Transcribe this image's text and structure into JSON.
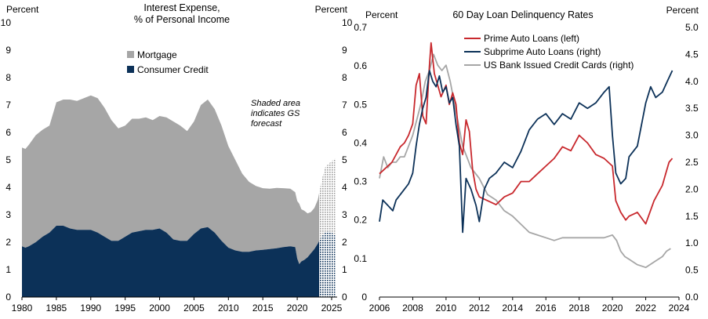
{
  "charts": [
    {
      "title_lines": [
        "Interest Expense,",
        "% of Personal Income"
      ],
      "ylabel_left": "Percent",
      "ylabel_right": "Percent",
      "x_ticks": [
        "1980",
        "1985",
        "1990",
        "1995",
        "2000",
        "2005",
        "2010",
        "2015",
        "2020",
        "2025"
      ],
      "y_ticks": [
        "0",
        "1",
        "2",
        "3",
        "4",
        "5",
        "6",
        "7",
        "8",
        "9",
        "10"
      ],
      "annotation_lines": [
        "Shaded area",
        "indicates GS",
        "forecast"
      ],
      "legend": [
        "Mortgage",
        "Consumer Credit"
      ]
    },
    {
      "title": "60 Day Loan Delinquency Rates",
      "ylabel_left": "Percent",
      "ylabel_right": "Percent",
      "x_ticks": [
        "2006",
        "2008",
        "2010",
        "2012",
        "2014",
        "2016",
        "2018",
        "2020",
        "2022",
        "2024"
      ],
      "y_ticks_left": [
        "0",
        "0.1",
        "0.2",
        "0.3",
        "0.4",
        "0.5",
        "0.6",
        "0.7"
      ],
      "y_ticks_right": [
        "0.0",
        "0.5",
        "1.0",
        "1.5",
        "2.0",
        "2.5",
        "3.0",
        "3.5",
        "4.0",
        "4.5",
        "5.0"
      ],
      "legend": [
        "Prime Auto Loans (left)",
        "Subprime Auto Loans (right)",
        "US Bank Issued Credit Cards (right)"
      ]
    }
  ],
  "colors": {
    "mortgage": "#a6a6a6",
    "consumer_credit": "#0c3158",
    "prime": "#c8282d",
    "subprime": "#0c3158",
    "cards": "#a6a6a6"
  },
  "chart_data": [
    {
      "type": "area",
      "stacked": true,
      "xlim": [
        1980,
        2025.8
      ],
      "ylim": [
        0,
        10
      ],
      "forecast_start": 2023.2,
      "series": [
        {
          "name": "Consumer Credit",
          "x": [
            1980,
            1980.5,
            1981,
            1982,
            1983,
            1984,
            1985,
            1986,
            1987,
            1988,
            1989,
            1990,
            1991,
            1992,
            1993,
            1994,
            1995,
            1996,
            1997,
            1998,
            1999,
            2000,
            2001,
            2002,
            2003,
            2004,
            2005,
            2006,
            2007,
            2008,
            2009,
            2010,
            2011,
            2012,
            2013,
            2014,
            2015,
            2016,
            2017,
            2018,
            2019,
            2019.7,
            2020,
            2020.3,
            2020.6,
            2021,
            2021.5,
            2022,
            2022.5,
            2023,
            2023.5,
            2024,
            2024.5,
            2025,
            2025.5
          ],
          "values": [
            1.85,
            1.8,
            1.85,
            2.0,
            2.2,
            2.35,
            2.6,
            2.6,
            2.5,
            2.45,
            2.45,
            2.45,
            2.35,
            2.2,
            2.05,
            2.05,
            2.2,
            2.35,
            2.4,
            2.45,
            2.45,
            2.5,
            2.35,
            2.1,
            2.05,
            2.05,
            2.3,
            2.5,
            2.55,
            2.35,
            2.05,
            1.8,
            1.7,
            1.65,
            1.65,
            1.7,
            1.72,
            1.75,
            1.78,
            1.82,
            1.85,
            1.82,
            1.4,
            1.2,
            1.3,
            1.35,
            1.45,
            1.6,
            1.75,
            1.95,
            2.2,
            2.35,
            2.4,
            2.35,
            2.25
          ]
        },
        {
          "name": "Mortgage",
          "x": [
            1980,
            1980.5,
            1981,
            1982,
            1983,
            1984,
            1985,
            1986,
            1987,
            1988,
            1989,
            1990,
            1991,
            1992,
            1993,
            1994,
            1995,
            1996,
            1997,
            1998,
            1999,
            2000,
            2001,
            2002,
            2003,
            2004,
            2005,
            2006,
            2007,
            2008,
            2009,
            2010,
            2011,
            2012,
            2013,
            2014,
            2015,
            2016,
            2017,
            2018,
            2019,
            2019.7,
            2020,
            2020.3,
            2020.6,
            2021,
            2021.5,
            2022,
            2022.5,
            2023,
            2023.5,
            2024,
            2024.5,
            2025,
            2025.5
          ],
          "values": [
            3.6,
            3.6,
            3.7,
            3.9,
            3.9,
            3.9,
            4.5,
            4.6,
            4.7,
            4.7,
            4.8,
            4.9,
            4.9,
            4.7,
            4.4,
            4.1,
            4.05,
            4.15,
            4.1,
            4.1,
            4.0,
            4.1,
            4.2,
            4.3,
            4.2,
            4.0,
            4.1,
            4.5,
            4.65,
            4.5,
            4.2,
            3.7,
            3.3,
            2.85,
            2.55,
            2.35,
            2.25,
            2.2,
            2.2,
            2.15,
            2.1,
            2.0,
            2.1,
            2.2,
            1.9,
            1.8,
            1.6,
            1.5,
            1.5,
            1.6,
            2.0,
            2.35,
            2.45,
            2.6,
            2.8
          ]
        }
      ]
    },
    {
      "type": "line",
      "xlim": [
        2006,
        2024
      ],
      "ylim_left": [
        0,
        0.7
      ],
      "ylim_right": [
        0,
        5
      ],
      "series": [
        {
          "name": "Prime Auto Loans (left)",
          "axis": "left",
          "x": [
            2006,
            2006.25,
            2006.5,
            2006.75,
            2007,
            2007.25,
            2007.5,
            2007.75,
            2008,
            2008.2,
            2008.4,
            2008.6,
            2008.8,
            2009,
            2009.1,
            2009.3,
            2009.5,
            2009.7,
            2010,
            2010.2,
            2010.4,
            2010.6,
            2010.8,
            2011,
            2011.2,
            2011.4,
            2011.6,
            2011.8,
            2012,
            2012.5,
            2013,
            2013.5,
            2014,
            2014.5,
            2015,
            2015.5,
            2016,
            2016.5,
            2017,
            2017.5,
            2018,
            2018.5,
            2019,
            2019.5,
            2020,
            2020.2,
            2020.5,
            2020.8,
            2021,
            2021.5,
            2022,
            2022.5,
            2023,
            2023.2,
            2023.4,
            2023.6
          ],
          "values": [
            0.32,
            0.33,
            0.34,
            0.35,
            0.37,
            0.39,
            0.4,
            0.42,
            0.45,
            0.55,
            0.58,
            0.47,
            0.45,
            0.6,
            0.66,
            0.58,
            0.55,
            0.52,
            0.55,
            0.5,
            0.53,
            0.5,
            0.4,
            0.37,
            0.46,
            0.43,
            0.33,
            0.28,
            0.26,
            0.25,
            0.24,
            0.26,
            0.27,
            0.3,
            0.3,
            0.32,
            0.34,
            0.36,
            0.39,
            0.38,
            0.42,
            0.4,
            0.37,
            0.36,
            0.34,
            0.25,
            0.22,
            0.2,
            0.21,
            0.22,
            0.19,
            0.25,
            0.29,
            0.32,
            0.35,
            0.36
          ]
        },
        {
          "name": "Subprime Auto Loans (right)",
          "axis": "right",
          "x": [
            2006,
            2006.2,
            2006.5,
            2006.8,
            2007,
            2007.25,
            2007.5,
            2007.75,
            2008,
            2008.2,
            2008.4,
            2008.6,
            2008.8,
            2009,
            2009.2,
            2009.4,
            2009.6,
            2009.8,
            2010,
            2010.2,
            2010.4,
            2010.6,
            2010.8,
            2011,
            2011.2,
            2011.5,
            2011.8,
            2012,
            2012.3,
            2012.6,
            2013,
            2013.5,
            2014,
            2014.5,
            2015,
            2015.5,
            2016,
            2016.5,
            2017,
            2017.5,
            2018,
            2018.5,
            2019,
            2019.5,
            2019.8,
            2020,
            2020.2,
            2020.5,
            2020.8,
            2021,
            2021.5,
            2022,
            2022.3,
            2022.6,
            2023,
            2023.3,
            2023.6
          ],
          "values": [
            1.4,
            1.8,
            1.7,
            1.6,
            1.8,
            1.9,
            2.0,
            2.1,
            2.3,
            2.8,
            3.2,
            3.5,
            3.7,
            4.2,
            4.0,
            3.9,
            4.1,
            3.8,
            3.9,
            3.6,
            3.7,
            3.2,
            2.8,
            1.2,
            2.2,
            2.0,
            1.7,
            1.4,
            2.0,
            2.2,
            2.3,
            2.5,
            2.4,
            2.7,
            3.1,
            3.3,
            3.4,
            3.2,
            3.4,
            3.3,
            3.6,
            3.5,
            3.6,
            3.8,
            3.9,
            3.0,
            2.3,
            2.1,
            2.2,
            2.6,
            2.8,
            3.6,
            3.9,
            3.7,
            3.8,
            4.0,
            4.2
          ]
        },
        {
          "name": "US Bank Issued Credit Cards (right)",
          "axis": "right",
          "x": [
            2006,
            2006.25,
            2006.5,
            2006.75,
            2007,
            2007.25,
            2007.5,
            2007.75,
            2008,
            2008.25,
            2008.5,
            2008.75,
            2009,
            2009.25,
            2009.5,
            2009.75,
            2010,
            2010.25,
            2010.5,
            2010.75,
            2011,
            2011.5,
            2012,
            2012.5,
            2013,
            2013.5,
            2014,
            2014.5,
            2015,
            2015.5,
            2016,
            2016.5,
            2017,
            2017.5,
            2018,
            2018.5,
            2019,
            2019.5,
            2020,
            2020.25,
            2020.5,
            2020.75,
            2021,
            2021.5,
            2022,
            2022.5,
            2023,
            2023.25,
            2023.5
          ],
          "values": [
            2.2,
            2.6,
            2.4,
            2.5,
            2.5,
            2.6,
            2.6,
            2.8,
            3.0,
            3.3,
            3.6,
            4.0,
            4.2,
            4.5,
            4.3,
            4.2,
            4.3,
            4.0,
            3.6,
            3.2,
            2.8,
            2.4,
            2.2,
            1.9,
            1.8,
            1.6,
            1.5,
            1.35,
            1.2,
            1.15,
            1.1,
            1.05,
            1.1,
            1.1,
            1.1,
            1.1,
            1.1,
            1.1,
            1.15,
            1.05,
            0.85,
            0.75,
            0.7,
            0.6,
            0.55,
            0.65,
            0.75,
            0.85,
            0.9
          ]
        }
      ]
    }
  ]
}
